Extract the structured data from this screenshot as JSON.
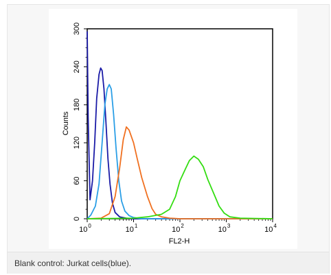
{
  "caption": "Blank control: Jurkat cells(blue).",
  "chart_data": {
    "type": "line",
    "title": "",
    "xlabel": "FL2-H",
    "ylabel": "Counts",
    "xscale": "log",
    "xlim": [
      1,
      10000
    ],
    "ylim": [
      0,
      300
    ],
    "x_ticks": [
      {
        "value": 1,
        "base": "10",
        "exp": "0"
      },
      {
        "value": 10,
        "base": "10",
        "exp": "1"
      },
      {
        "value": 100,
        "base": "10",
        "exp": "2"
      },
      {
        "value": 1000,
        "base": "10",
        "exp": "3"
      },
      {
        "value": 10000,
        "base": "10",
        "exp": "4"
      }
    ],
    "y_ticks": [
      0,
      60,
      120,
      180,
      240,
      300
    ],
    "grid": false,
    "legend": "none",
    "series": [
      {
        "color": "#1a1aa6",
        "points": [
          [
            1,
            296
          ],
          [
            1.05,
            160
          ],
          [
            1.15,
            30
          ],
          [
            1.3,
            60
          ],
          [
            1.45,
            120
          ],
          [
            1.6,
            190
          ],
          [
            1.8,
            228
          ],
          [
            1.95,
            238
          ],
          [
            2.1,
            234
          ],
          [
            2.3,
            205
          ],
          [
            2.55,
            150
          ],
          [
            2.8,
            95
          ],
          [
            3.1,
            55
          ],
          [
            3.5,
            25
          ],
          [
            4,
            10
          ],
          [
            5,
            3
          ],
          [
            7,
            1
          ],
          [
            10,
            0
          ],
          [
            10000,
            0
          ]
        ]
      },
      {
        "color": "#2a9ee6",
        "points": [
          [
            1,
            0
          ],
          [
            1.2,
            6
          ],
          [
            1.5,
            20
          ],
          [
            1.8,
            55
          ],
          [
            2.1,
            120
          ],
          [
            2.4,
            180
          ],
          [
            2.7,
            205
          ],
          [
            3,
            212
          ],
          [
            3.3,
            205
          ],
          [
            3.7,
            165
          ],
          [
            4.2,
            110
          ],
          [
            4.8,
            60
          ],
          [
            5.5,
            28
          ],
          [
            6.5,
            12
          ],
          [
            8,
            5
          ],
          [
            10,
            2
          ],
          [
            15,
            0
          ],
          [
            10000,
            0
          ]
        ]
      },
      {
        "color": "#f07020",
        "points": [
          [
            1,
            0
          ],
          [
            2,
            1
          ],
          [
            3,
            8
          ],
          [
            4,
            35
          ],
          [
            5,
            80
          ],
          [
            6,
            125
          ],
          [
            7,
            145
          ],
          [
            8,
            140
          ],
          [
            10,
            120
          ],
          [
            12,
            95
          ],
          [
            15,
            65
          ],
          [
            20,
            35
          ],
          [
            25,
            16
          ],
          [
            30,
            7
          ],
          [
            40,
            3
          ],
          [
            60,
            1
          ],
          [
            100,
            0
          ],
          [
            10000,
            0
          ]
        ]
      },
      {
        "color": "#33dd11",
        "points": [
          [
            1,
            0
          ],
          [
            10,
            1
          ],
          [
            20,
            3
          ],
          [
            40,
            7
          ],
          [
            60,
            15
          ],
          [
            80,
            35
          ],
          [
            100,
            60
          ],
          [
            130,
            78
          ],
          [
            160,
            92
          ],
          [
            200,
            99
          ],
          [
            250,
            94
          ],
          [
            320,
            82
          ],
          [
            400,
            62
          ],
          [
            550,
            38
          ],
          [
            700,
            20
          ],
          [
            900,
            9
          ],
          [
            1200,
            3
          ],
          [
            2000,
            1
          ],
          [
            10000,
            0
          ]
        ]
      }
    ]
  }
}
